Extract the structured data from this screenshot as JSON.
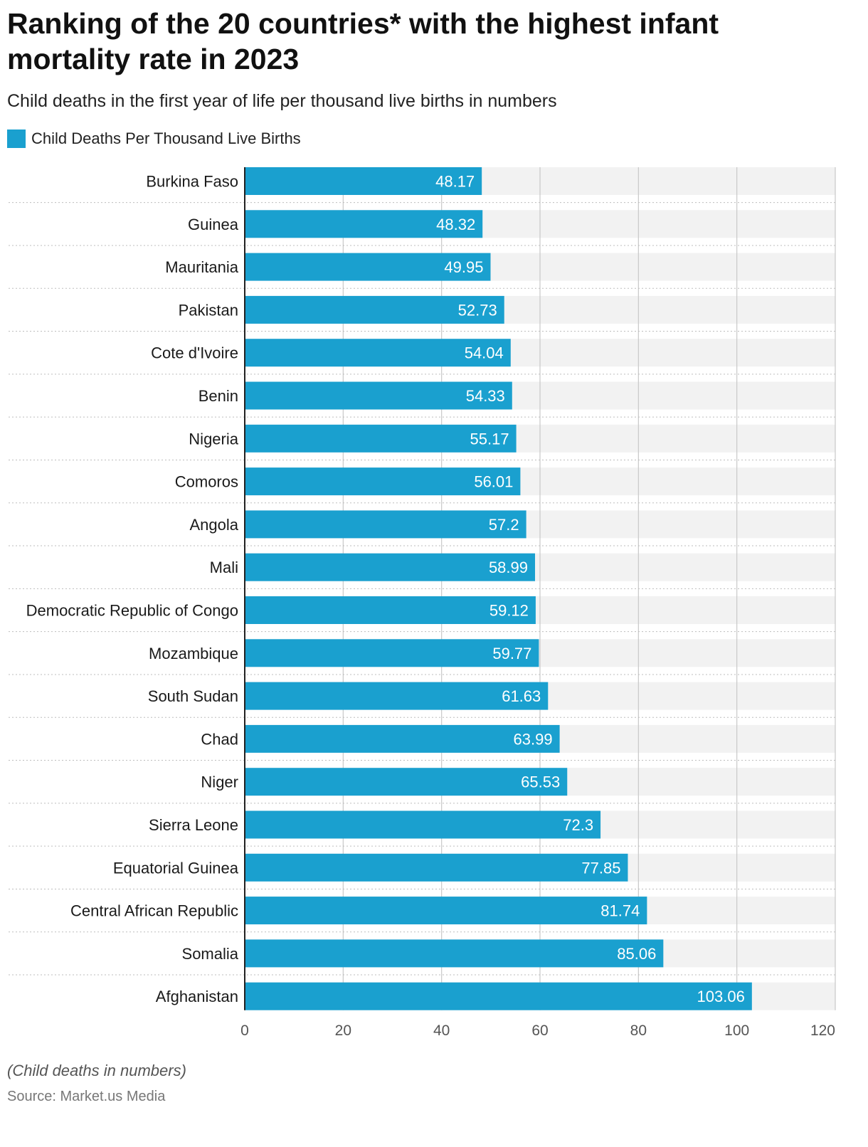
{
  "title": "Ranking of the 20 countries* with the highest infant mortality rate in 2023",
  "subtitle": "Child deaths in the first year of life per thousand live births in numbers",
  "legend_label": "Child Deaths Per Thousand Live Births",
  "note": "(Child deaths in numbers)",
  "source": "Source: Market.us Media",
  "colors": {
    "bar": "#1aa0cf",
    "track": "#f2f2f2",
    "grid": "#c8c8c8",
    "axis": "#222222",
    "bar_label": "#ffffff"
  },
  "chart_data": {
    "type": "bar",
    "orientation": "horizontal",
    "title": "Ranking of the 20 countries* with the highest infant mortality rate in 2023",
    "xlabel": "",
    "ylabel": "",
    "xlim": [
      0,
      120
    ],
    "ticks": [
      0,
      20,
      40,
      60,
      80,
      100,
      120
    ],
    "categories": [
      "Burkina Faso",
      "Guinea",
      "Mauritania",
      "Pakistan",
      "Cote d'Ivoire",
      "Benin",
      "Nigeria",
      "Comoros",
      "Angola",
      "Mali",
      "Democratic Republic of Congo",
      "Mozambique",
      "South Sudan",
      "Chad",
      "Niger",
      "Sierra Leone",
      "Equatorial Guinea",
      "Central African Republic",
      "Somalia",
      "Afghanistan"
    ],
    "series": [
      {
        "name": "Child Deaths Per Thousand Live Births",
        "values": [
          48.17,
          48.32,
          49.95,
          52.73,
          54.04,
          54.33,
          55.17,
          56.01,
          57.2,
          58.99,
          59.12,
          59.77,
          61.63,
          63.99,
          65.53,
          72.3,
          77.85,
          81.74,
          85.06,
          103.06
        ],
        "labels": [
          "48.17",
          "48.32",
          "49.95",
          "52.73",
          "54.04",
          "54.33",
          "55.17",
          "56.01",
          "57.2",
          "58.99",
          "59.12",
          "59.77",
          "61.63",
          "63.99",
          "65.53",
          "72.3",
          "77.85",
          "81.74",
          "85.06",
          "103.06"
        ]
      }
    ],
    "grid": true,
    "legend": "top-left"
  }
}
